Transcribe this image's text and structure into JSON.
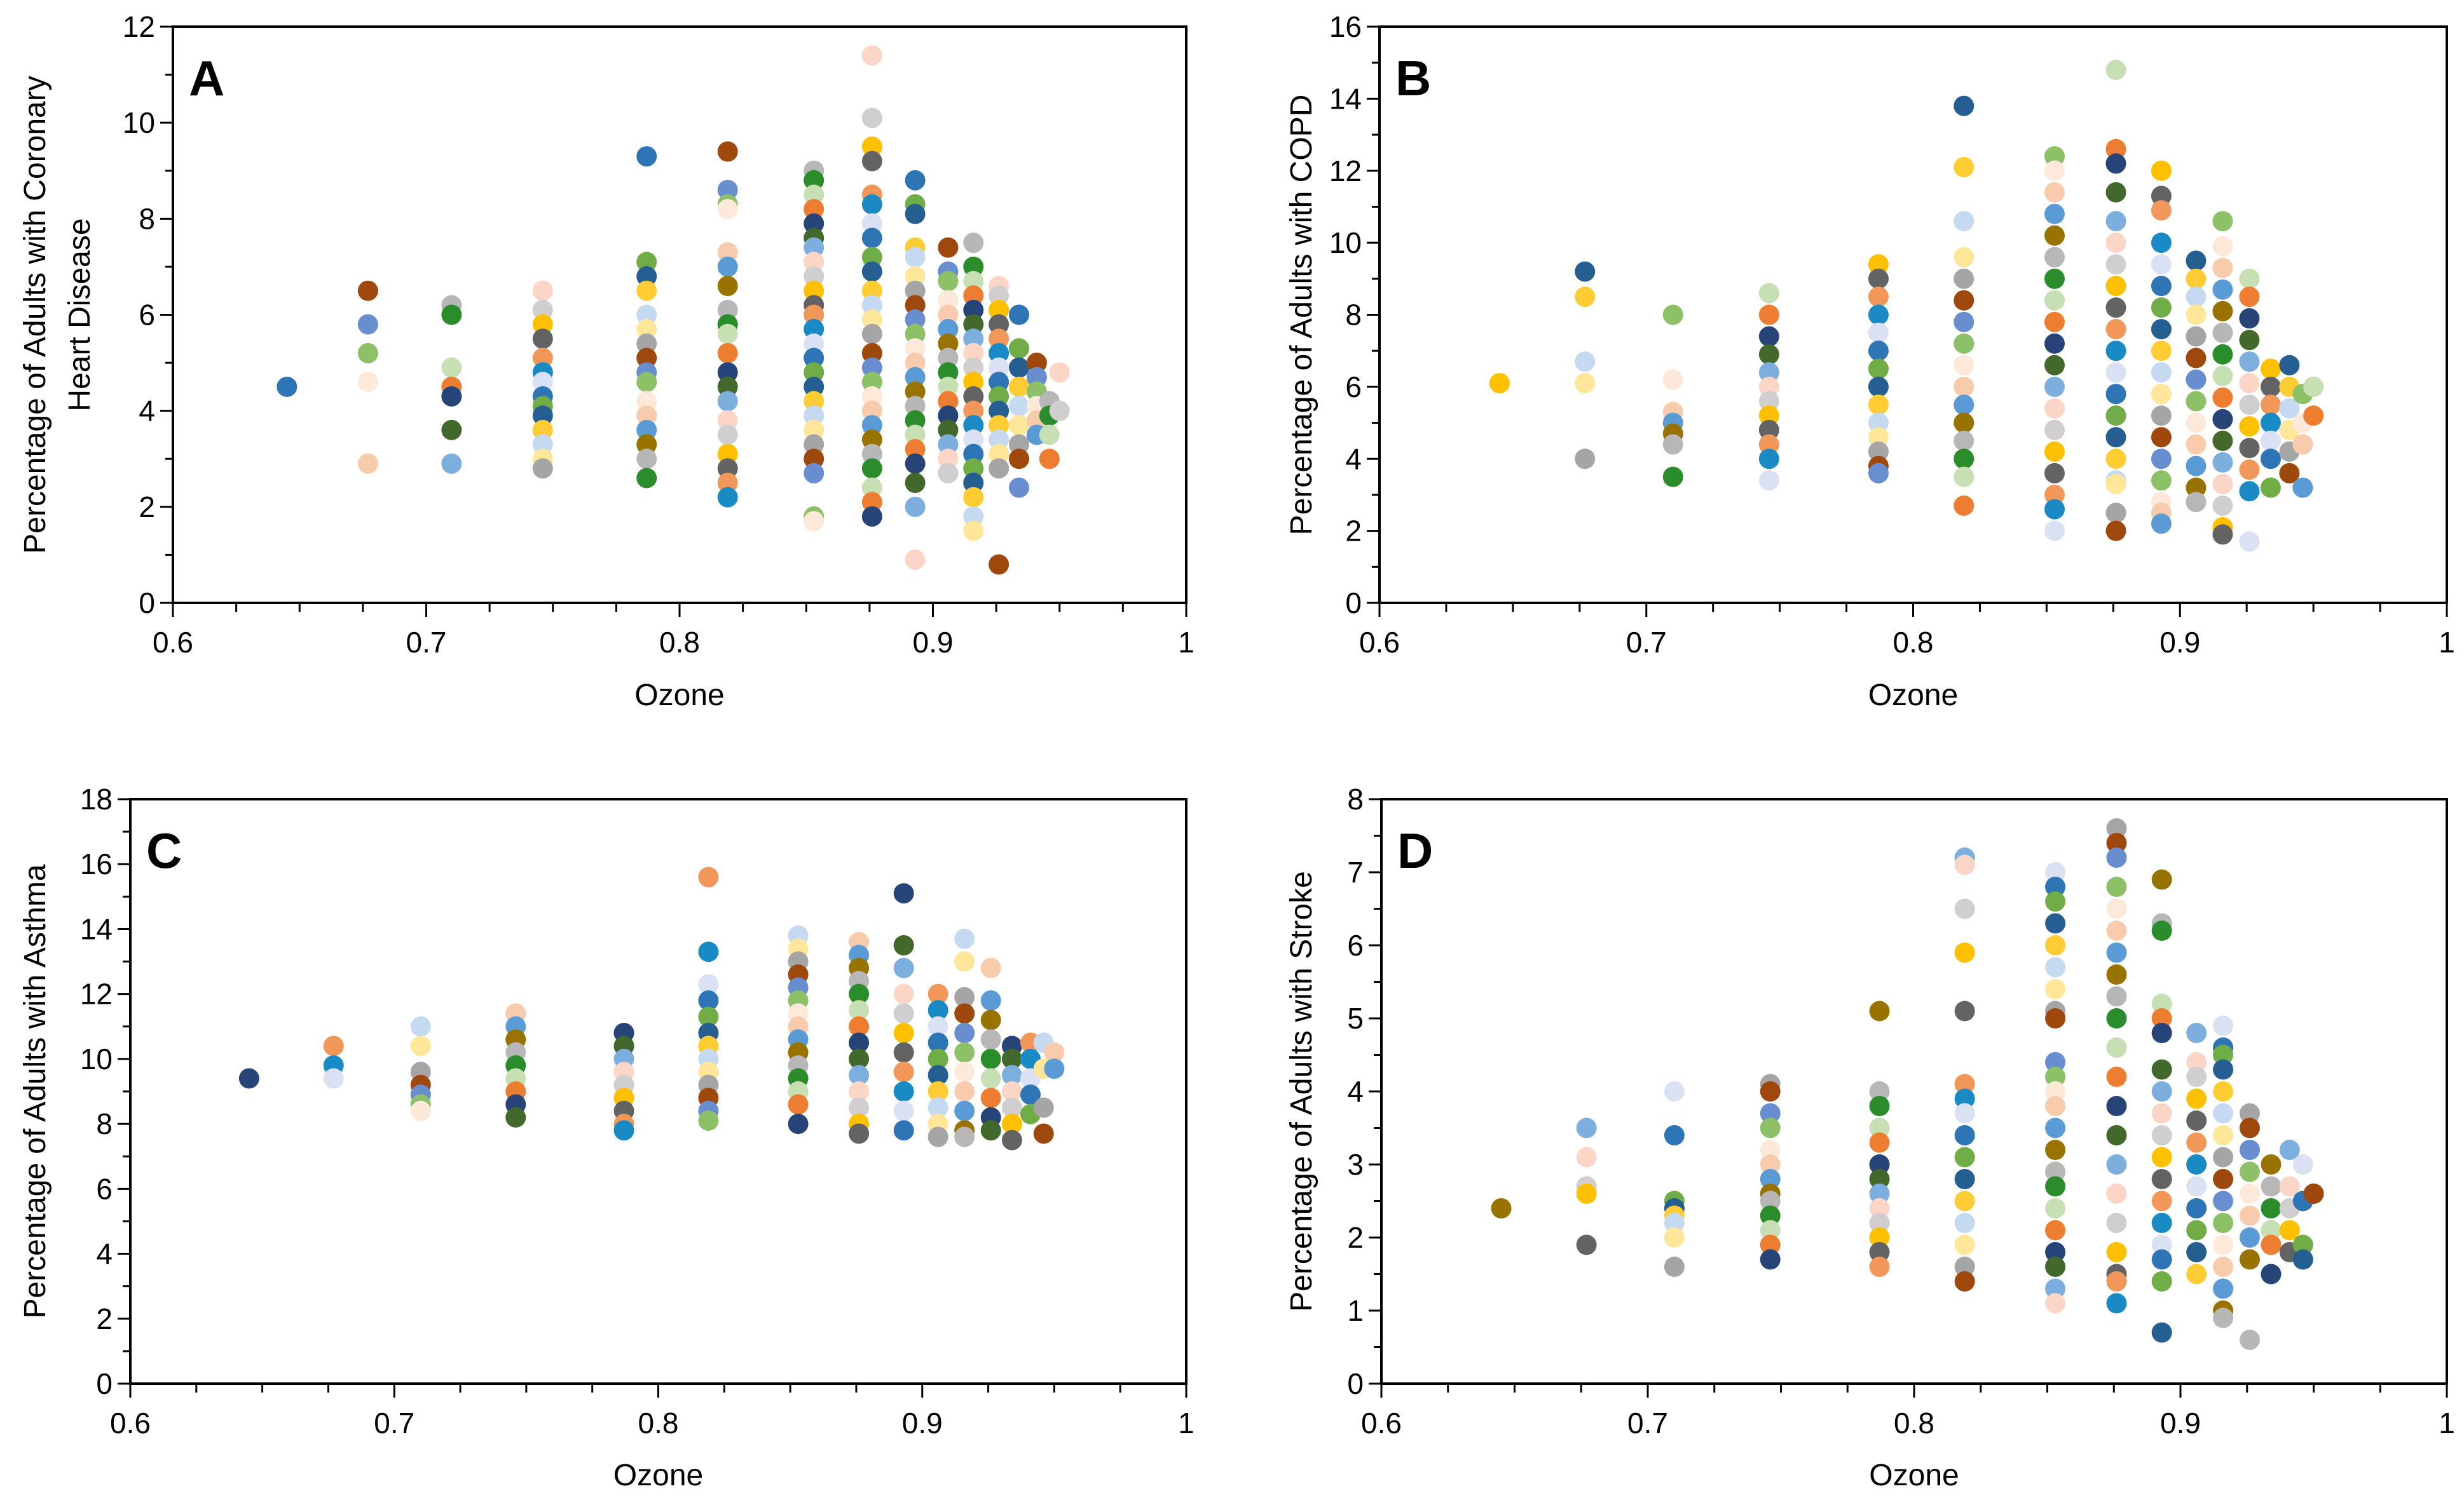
{
  "palette": [
    "#2E75B6",
    "#ED7D31",
    "#A5A5A5",
    "#FFC000",
    "#5B9BD5",
    "#70AD47",
    "#264478",
    "#9E480E",
    "#636363",
    "#997300",
    "#255E91",
    "#43682B",
    "#698ED0",
    "#F1975A",
    "#B7B7B7",
    "#FFCD33",
    "#7CAFDD",
    "#8CC168",
    "#1A8AC4",
    "#2B8C2B",
    "#C5D9F1",
    "#FBD5C5",
    "#FDE9D9",
    "#D9E1F2",
    "#C6E0B4",
    "#FFE699",
    "#D0CECE",
    "#F8CBAD"
  ],
  "chart_data": [
    {
      "type": "scatter",
      "panel_letter": "A",
      "xlabel": "Ozone",
      "ylabel": [
        "Percentage of Adults with Coronary",
        "Heart Disease"
      ],
      "xlim": [
        0.6,
        1
      ],
      "ylim": [
        0,
        12
      ],
      "xticks": [
        "0.6",
        "0.7",
        "0.8",
        "0.9",
        "1"
      ],
      "yticks": [
        "0",
        "2",
        "4",
        "6",
        "8",
        "10",
        "12"
      ],
      "columns": [
        {
          "x": 0.645,
          "y": [
            4.5
          ]
        },
        {
          "x": 0.677,
          "y": [
            6.5,
            5.8,
            5.2,
            4.6,
            2.9
          ]
        },
        {
          "x": 0.71,
          "y": [
            6.2,
            6.0,
            4.9,
            4.5,
            4.3,
            3.6,
            2.9
          ]
        },
        {
          "x": 0.746,
          "y": [
            6.5,
            6.1,
            5.8,
            5.5,
            5.1,
            4.8,
            4.6,
            4.3,
            4.1,
            3.9,
            3.6,
            3.3,
            3.0,
            2.8
          ]
        },
        {
          "x": 0.787,
          "y": [
            9.3,
            7.1,
            6.8,
            6.5,
            6.0,
            5.7,
            5.4,
            5.1,
            4.8,
            4.6,
            4.2,
            3.9,
            3.6,
            3.3,
            3.0,
            2.6
          ]
        },
        {
          "x": 0.819,
          "y": [
            9.4,
            8.6,
            8.3,
            8.2,
            7.3,
            7.0,
            6.6,
            6.1,
            5.8,
            5.6,
            5.2,
            4.8,
            4.5,
            4.2,
            3.8,
            3.5,
            3.1,
            2.8,
            2.5,
            2.2
          ]
        },
        {
          "x": 0.853,
          "y": [
            9.0,
            8.8,
            8.5,
            8.2,
            7.9,
            7.6,
            7.4,
            7.1,
            6.8,
            6.5,
            6.2,
            6.0,
            5.7,
            5.4,
            5.1,
            4.8,
            4.5,
            4.2,
            3.9,
            3.6,
            3.3,
            3.0,
            2.7,
            1.8,
            1.7
          ]
        },
        {
          "x": 0.876,
          "y": [
            11.4,
            10.1,
            9.5,
            9.2,
            8.5,
            8.3,
            7.9,
            7.6,
            7.2,
            6.9,
            6.5,
            6.2,
            5.9,
            5.6,
            5.2,
            4.9,
            4.6,
            4.3,
            4.0,
            3.7,
            3.4,
            3.1,
            2.8,
            2.4,
            2.1,
            1.8
          ]
        },
        {
          "x": 0.893,
          "y": [
            8.8,
            8.3,
            8.1,
            7.4,
            7.2,
            6.8,
            6.5,
            6.2,
            5.9,
            5.6,
            5.3,
            5.0,
            4.7,
            4.4,
            4.1,
            3.8,
            3.5,
            3.2,
            2.9,
            2.5,
            2.0,
            0.9
          ]
        },
        {
          "x": 0.906,
          "y": [
            7.4,
            6.9,
            6.7,
            6.3,
            6.0,
            5.7,
            5.4,
            5.1,
            4.8,
            4.5,
            4.2,
            3.9,
            3.6,
            3.3,
            3.0,
            2.7
          ]
        },
        {
          "x": 0.916,
          "y": [
            7.5,
            7.0,
            6.7,
            6.4,
            6.1,
            5.8,
            5.5,
            5.2,
            4.9,
            4.6,
            4.3,
            4.0,
            3.7,
            3.4,
            3.1,
            2.8,
            2.5,
            2.2,
            1.8,
            1.5
          ]
        },
        {
          "x": 0.926,
          "y": [
            6.6,
            6.4,
            6.1,
            5.8,
            5.5,
            5.2,
            4.9,
            4.6,
            4.3,
            4.0,
            3.7,
            3.4,
            3.1,
            2.8,
            0.8
          ]
        },
        {
          "x": 0.934,
          "y": [
            6.0,
            5.3,
            4.9,
            4.5,
            4.1,
            3.7,
            3.3,
            3.0,
            2.4
          ]
        },
        {
          "x": 0.941,
          "y": [
            5.0,
            4.7,
            4.4,
            4.1,
            3.8,
            3.5
          ]
        },
        {
          "x": 0.946,
          "y": [
            4.2,
            3.9,
            3.5,
            3.0
          ]
        },
        {
          "x": 0.95,
          "y": [
            4.8,
            4.0
          ]
        }
      ]
    },
    {
      "type": "scatter",
      "panel_letter": "B",
      "xlabel": "Ozone",
      "ylabel": [
        "Percentage of Adults with COPD"
      ],
      "xlim": [
        0.6,
        1
      ],
      "ylim": [
        0,
        16
      ],
      "xticks": [
        "0.6",
        "0.7",
        "0.8",
        "0.9",
        "1"
      ],
      "yticks": [
        "0",
        "2",
        "4",
        "6",
        "8",
        "10",
        "12",
        "14",
        "16"
      ],
      "columns": [
        {
          "x": 0.645,
          "y": [
            6.1
          ]
        },
        {
          "x": 0.677,
          "y": [
            9.2,
            8.5,
            6.7,
            6.1,
            4.0
          ]
        },
        {
          "x": 0.71,
          "y": [
            8.0,
            6.2,
            5.3,
            5.0,
            4.7,
            4.4,
            3.5
          ]
        },
        {
          "x": 0.746,
          "y": [
            8.6,
            8.0,
            7.4,
            6.9,
            6.4,
            6.0,
            5.6,
            5.2,
            4.8,
            4.4,
            4.0,
            3.4
          ]
        },
        {
          "x": 0.787,
          "y": [
            9.4,
            9.0,
            8.5,
            8.0,
            7.5,
            7.0,
            6.5,
            6.0,
            5.5,
            5.0,
            4.6,
            4.2,
            3.8,
            3.6
          ]
        },
        {
          "x": 0.819,
          "y": [
            13.8,
            12.1,
            10.6,
            9.6,
            9.0,
            8.4,
            7.8,
            7.2,
            6.6,
            6.0,
            5.5,
            5.0,
            4.5,
            4.0,
            3.5,
            2.7
          ]
        },
        {
          "x": 0.853,
          "y": [
            12.4,
            12.0,
            11.4,
            10.8,
            10.2,
            9.6,
            9.0,
            8.4,
            7.8,
            7.2,
            6.6,
            6.0,
            5.4,
            4.8,
            4.2,
            3.6,
            3.0,
            2.6,
            2.0
          ]
        },
        {
          "x": 0.876,
          "y": [
            14.8,
            12.6,
            12.2,
            11.4,
            10.6,
            10.0,
            9.4,
            8.8,
            8.2,
            7.6,
            7.0,
            6.4,
            5.8,
            5.2,
            4.6,
            4.0,
            3.4,
            3.3,
            2.5,
            2.0
          ]
        },
        {
          "x": 0.893,
          "y": [
            12.0,
            11.3,
            10.9,
            10.0,
            9.4,
            8.8,
            8.2,
            7.6,
            7.0,
            6.4,
            5.8,
            5.2,
            4.6,
            4.0,
            3.4,
            2.8,
            2.5,
            2.2
          ]
        },
        {
          "x": 0.906,
          "y": [
            9.5,
            9.0,
            8.5,
            8.0,
            7.4,
            6.8,
            6.2,
            5.6,
            5.0,
            4.4,
            3.8,
            3.2,
            2.8
          ]
        },
        {
          "x": 0.916,
          "y": [
            10.6,
            9.9,
            9.3,
            8.7,
            8.1,
            7.5,
            6.9,
            6.3,
            5.7,
            5.1,
            4.5,
            3.9,
            3.3,
            2.7,
            2.1,
            1.9
          ]
        },
        {
          "x": 0.926,
          "y": [
            9.0,
            8.5,
            7.9,
            7.3,
            6.7,
            6.1,
            5.5,
            4.9,
            4.3,
            3.7,
            3.1,
            1.7
          ]
        },
        {
          "x": 0.934,
          "y": [
            6.5,
            6.0,
            5.5,
            5.0,
            4.5,
            4.0,
            3.2
          ]
        },
        {
          "x": 0.941,
          "y": [
            6.6,
            6.0,
            5.4,
            4.8,
            4.2,
            3.6
          ]
        },
        {
          "x": 0.946,
          "y": [
            5.8,
            5.0,
            4.4,
            3.2
          ]
        },
        {
          "x": 0.95,
          "y": [
            6.0,
            5.2
          ]
        }
      ]
    },
    {
      "type": "scatter",
      "panel_letter": "C",
      "xlabel": "Ozone",
      "ylabel": [
        "Percentage of Adults with Asthma"
      ],
      "xlim": [
        0.6,
        1
      ],
      "ylim": [
        0,
        18
      ],
      "xticks": [
        "0.6",
        "0.7",
        "0.8",
        "0.9",
        "1"
      ],
      "yticks": [
        "0",
        "2",
        "4",
        "6",
        "8",
        "10",
        "12",
        "14",
        "16",
        "18"
      ],
      "columns": [
        {
          "x": 0.645,
          "y": [
            9.4
          ]
        },
        {
          "x": 0.677,
          "y": [
            10.4,
            9.8,
            9.4
          ]
        },
        {
          "x": 0.71,
          "y": [
            11.0,
            10.4,
            9.6,
            9.2,
            8.9,
            8.6,
            8.4
          ]
        },
        {
          "x": 0.746,
          "y": [
            11.4,
            11.0,
            10.6,
            10.2,
            9.8,
            9.4,
            9.0,
            8.6,
            8.2
          ]
        },
        {
          "x": 0.787,
          "y": [
            10.8,
            10.4,
            10.0,
            9.6,
            9.2,
            8.8,
            8.4,
            8.0,
            7.8
          ]
        },
        {
          "x": 0.819,
          "y": [
            15.6,
            13.3,
            12.3,
            11.8,
            11.3,
            10.8,
            10.4,
            10.0,
            9.6,
            9.2,
            8.8,
            8.4,
            8.1
          ]
        },
        {
          "x": 0.853,
          "y": [
            13.8,
            13.4,
            13.0,
            12.6,
            12.2,
            11.8,
            11.4,
            11.0,
            10.6,
            10.2,
            9.8,
            9.4,
            9.0,
            8.6,
            8.0
          ]
        },
        {
          "x": 0.876,
          "y": [
            13.6,
            13.2,
            12.8,
            12.4,
            12.0,
            11.5,
            11.0,
            10.5,
            10.0,
            9.5,
            9.0,
            8.5,
            8.0,
            7.7
          ]
        },
        {
          "x": 0.893,
          "y": [
            15.1,
            13.5,
            12.8,
            12.0,
            11.4,
            10.8,
            10.2,
            9.6,
            9.0,
            8.4,
            7.8
          ]
        },
        {
          "x": 0.906,
          "y": [
            12.0,
            11.5,
            11.0,
            10.5,
            10.0,
            9.5,
            9.0,
            8.5,
            8.0,
            7.6
          ]
        },
        {
          "x": 0.916,
          "y": [
            13.7,
            13.0,
            11.9,
            11.4,
            10.8,
            10.2,
            9.6,
            9.0,
            8.4,
            7.8,
            7.6
          ]
        },
        {
          "x": 0.926,
          "y": [
            12.8,
            11.8,
            11.2,
            10.6,
            10.0,
            9.4,
            8.8,
            8.2,
            7.8
          ]
        },
        {
          "x": 0.934,
          "y": [
            10.4,
            10.0,
            9.5,
            9.0,
            8.5,
            8.0,
            7.5
          ]
        },
        {
          "x": 0.941,
          "y": [
            10.5,
            10.0,
            9.4,
            8.9,
            8.3
          ]
        },
        {
          "x": 0.946,
          "y": [
            10.5,
            9.7,
            8.5,
            7.7
          ]
        },
        {
          "x": 0.95,
          "y": [
            10.2,
            9.7
          ]
        }
      ]
    },
    {
      "type": "scatter",
      "panel_letter": "D",
      "xlabel": "Ozone",
      "ylabel": [
        "Percentage of Adults with Stroke"
      ],
      "xlim": [
        0.6,
        1
      ],
      "ylim": [
        0,
        8
      ],
      "xticks": [
        "0.6",
        "0.7",
        "0.8",
        "0.9",
        "1"
      ],
      "yticks": [
        "0",
        "1",
        "2",
        "3",
        "4",
        "5",
        "6",
        "7",
        "8"
      ],
      "columns": [
        {
          "x": 0.645,
          "y": [
            2.4
          ]
        },
        {
          "x": 0.677,
          "y": [
            3.5,
            3.1,
            2.7,
            2.6,
            1.9
          ]
        },
        {
          "x": 0.71,
          "y": [
            4.0,
            3.4,
            2.5,
            2.4,
            2.3,
            2.2,
            2.0,
            1.6
          ]
        },
        {
          "x": 0.746,
          "y": [
            4.1,
            4.0,
            3.7,
            3.5,
            3.2,
            3.0,
            2.8,
            2.6,
            2.5,
            2.3,
            2.1,
            1.9,
            1.7
          ]
        },
        {
          "x": 0.787,
          "y": [
            5.1,
            4.0,
            3.8,
            3.5,
            3.3,
            3.0,
            2.8,
            2.6,
            2.4,
            2.2,
            2.0,
            1.8,
            1.6
          ]
        },
        {
          "x": 0.819,
          "y": [
            7.2,
            7.1,
            6.5,
            5.9,
            5.1,
            4.1,
            3.9,
            3.7,
            3.4,
            3.1,
            2.8,
            2.5,
            2.2,
            1.9,
            1.6,
            1.4
          ]
        },
        {
          "x": 0.853,
          "y": [
            7.0,
            6.8,
            6.6,
            6.3,
            6.0,
            5.7,
            5.4,
            5.1,
            5.0,
            4.4,
            4.2,
            4.0,
            3.8,
            3.5,
            3.2,
            2.9,
            2.7,
            2.4,
            2.1,
            1.8,
            1.6,
            1.3,
            1.1
          ]
        },
        {
          "x": 0.876,
          "y": [
            7.6,
            7.4,
            7.2,
            6.8,
            6.5,
            6.2,
            5.9,
            5.6,
            5.3,
            5.0,
            4.6,
            4.2,
            3.8,
            3.4,
            3.0,
            2.6,
            2.2,
            1.8,
            1.5,
            1.4,
            1.1
          ]
        },
        {
          "x": 0.893,
          "y": [
            6.9,
            6.3,
            6.2,
            5.2,
            5.0,
            4.8,
            4.3,
            4.0,
            3.7,
            3.4,
            3.1,
            2.8,
            2.5,
            2.2,
            1.9,
            1.7,
            1.4,
            0.7
          ]
        },
        {
          "x": 0.906,
          "y": [
            4.8,
            4.4,
            4.2,
            3.9,
            3.6,
            3.3,
            3.0,
            2.7,
            2.4,
            2.1,
            1.8,
            1.5
          ]
        },
        {
          "x": 0.916,
          "y": [
            4.9,
            4.6,
            4.5,
            4.3,
            4.0,
            3.7,
            3.4,
            3.1,
            2.8,
            2.5,
            2.2,
            1.9,
            1.6,
            1.3,
            1.0,
            0.9
          ]
        },
        {
          "x": 0.926,
          "y": [
            3.7,
            3.5,
            3.2,
            2.9,
            2.6,
            2.3,
            2.0,
            1.7,
            0.6
          ]
        },
        {
          "x": 0.934,
          "y": [
            3.0,
            2.7,
            2.4,
            2.1,
            1.9,
            1.5
          ]
        },
        {
          "x": 0.941,
          "y": [
            3.2,
            2.7,
            2.4,
            2.1,
            1.8
          ]
        },
        {
          "x": 0.946,
          "y": [
            3.0,
            2.5,
            1.9,
            1.7
          ]
        },
        {
          "x": 0.95,
          "y": [
            2.6,
            2.6
          ]
        }
      ]
    }
  ]
}
